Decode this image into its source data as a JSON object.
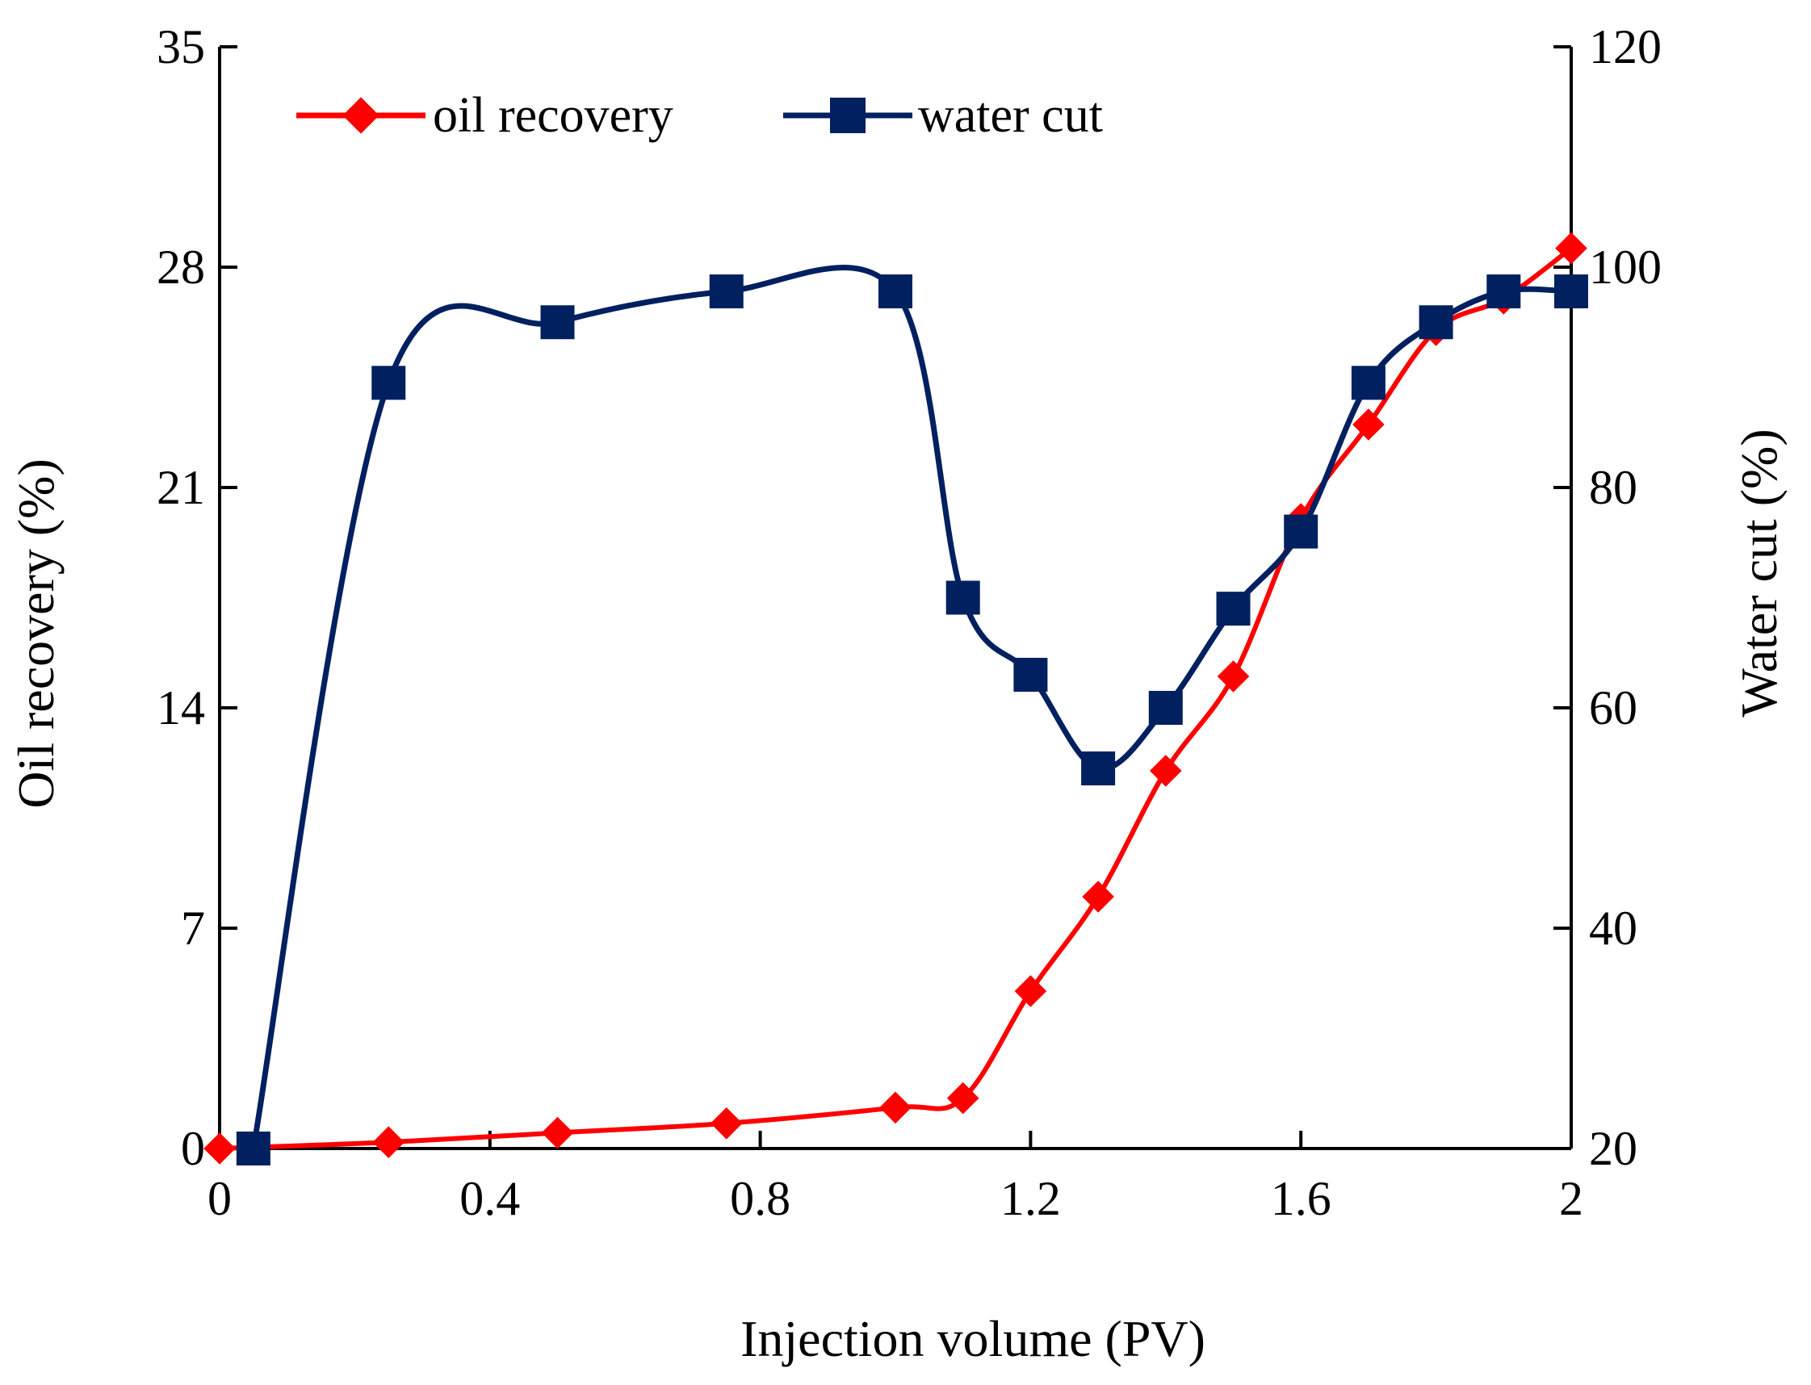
{
  "chart_data": {
    "type": "line",
    "xlabel": "Injection volume (PV)",
    "ylabel_left": "Oil recovery (%)",
    "ylabel_right": "Water cut (%)",
    "xlim": [
      0,
      2
    ],
    "xticks": [
      "0",
      "0.4",
      "0.8",
      "1.2",
      "1.6",
      "2"
    ],
    "ylim_left": [
      0,
      35
    ],
    "yticks_left": [
      "0",
      "7",
      "14",
      "21",
      "28",
      "35"
    ],
    "ylim_right": [
      20,
      120
    ],
    "yticks_right": [
      "20",
      "40",
      "60",
      "80",
      "100",
      "120"
    ],
    "grid": false,
    "legend_position": "top-left",
    "series": [
      {
        "name": "oil recovery",
        "axis": "left",
        "color": "#ff0000",
        "marker": "diamond",
        "x": [
          0,
          0.25,
          0.5,
          0.75,
          1.0,
          1.1,
          1.2,
          1.3,
          1.4,
          1.5,
          1.6,
          1.7,
          1.8,
          1.9,
          2.0
        ],
        "values": [
          0,
          0.2,
          0.5,
          0.8,
          1.3,
          1.6,
          5.0,
          8.0,
          12.0,
          15.0,
          20.0,
          23.0,
          26.0,
          27.0,
          28.6
        ]
      },
      {
        "name": "water cut",
        "axis": "right",
        "color": "#002060",
        "marker": "square",
        "x": [
          0.05,
          0.25,
          0.5,
          0.75,
          1.0,
          1.1,
          1.2,
          1.3,
          1.4,
          1.5,
          1.6,
          1.7,
          1.8,
          1.9,
          2.0
        ],
        "values": [
          20,
          89.5,
          95,
          97.8,
          97.8,
          70,
          63,
          54.5,
          60,
          69,
          76,
          89.5,
          95,
          97.8,
          97.8
        ]
      }
    ]
  }
}
